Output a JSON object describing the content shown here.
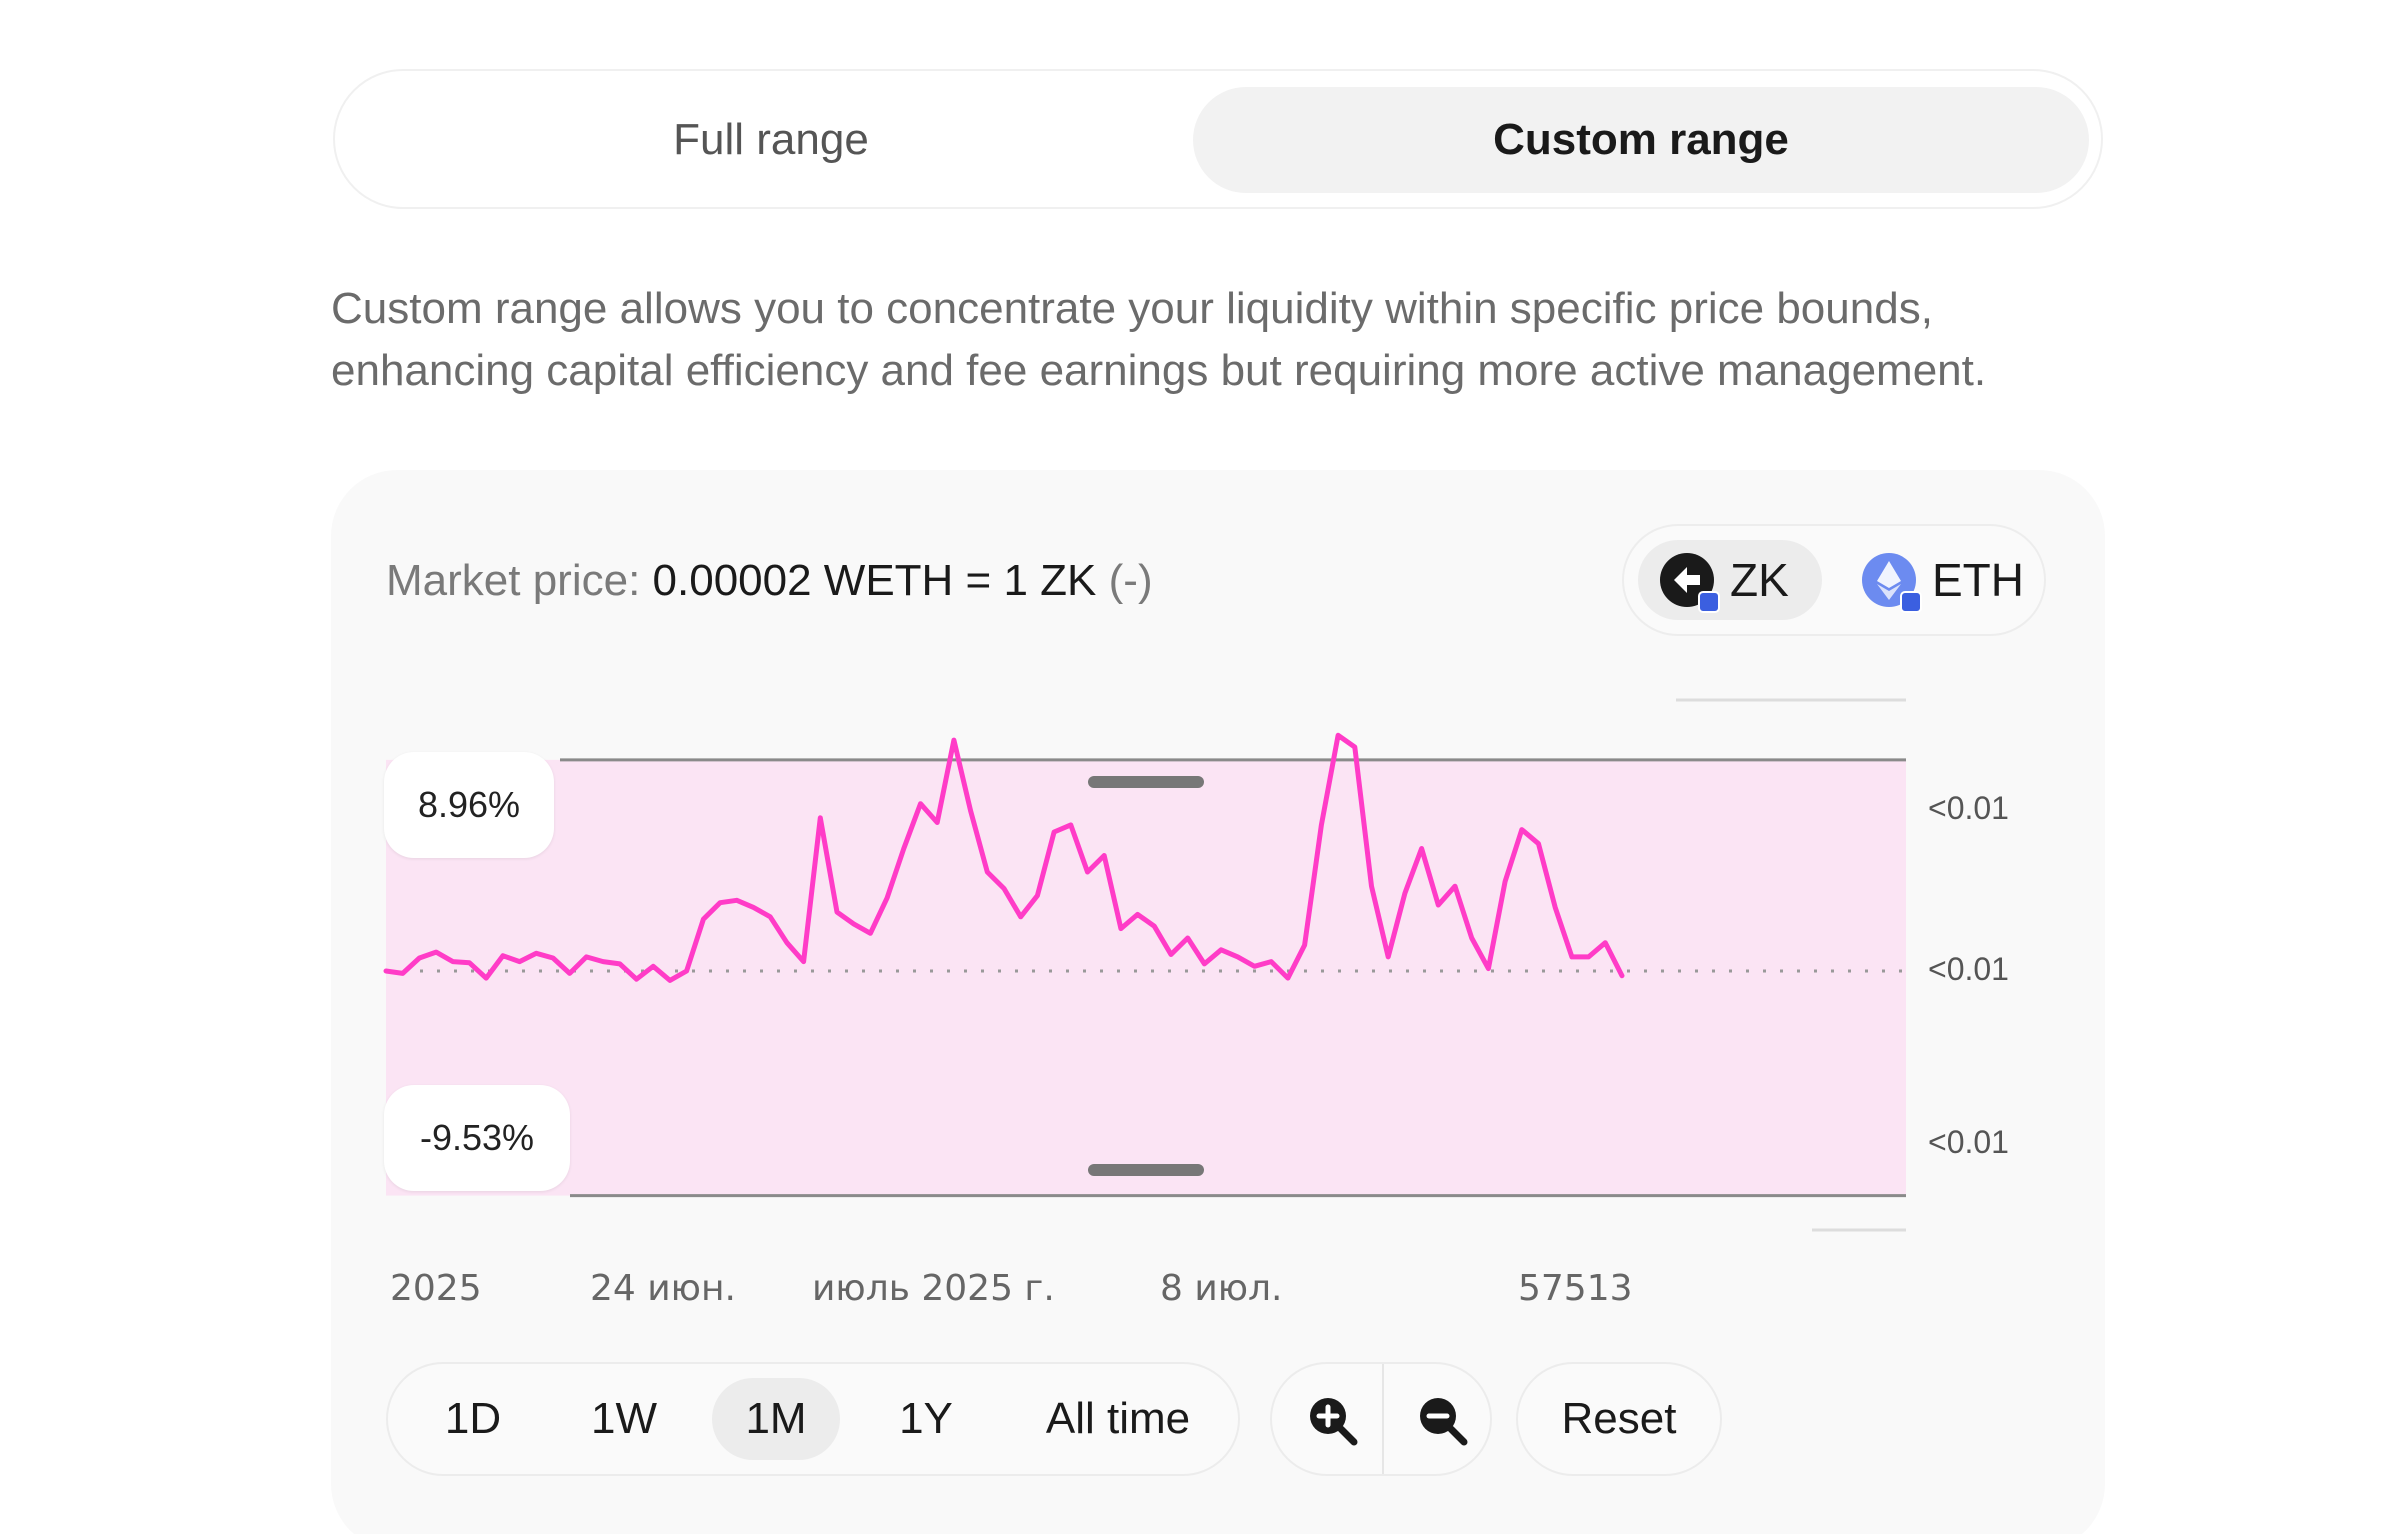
{
  "range_toggle": {
    "full_label": "Full range",
    "custom_label": "Custom range",
    "selected": "custom"
  },
  "description": "Custom range allows you to concentrate your liquidity within specific price bounds, enhancing capital efficiency and fee earnings but requiring more active management.",
  "market_price": {
    "label": "Market price:",
    "value": "0.00002 WETH = 1 ZK",
    "change": "(-)"
  },
  "tokens": [
    {
      "symbol": "ZK",
      "icon": "zk-token-icon",
      "selected": true
    },
    {
      "symbol": "ETH",
      "icon": "eth-token-icon",
      "selected": false
    }
  ],
  "chart_data": {
    "type": "line",
    "x_labels": [
      "2025",
      "24 июн.",
      "июль 2025 г.",
      "8 июл.",
      "57513"
    ],
    "upper_bound_label": "8.96%",
    "lower_bound_label": "-9.53%",
    "y_labels": [
      "<0.01",
      "<0.01",
      "<0.01"
    ],
    "series": [
      {
        "color": "#ff3cc7",
        "values": [
          0.0,
          -0.1,
          0.55,
          0.8,
          0.4,
          0.35,
          -0.3,
          0.65,
          0.4,
          0.75,
          0.55,
          -0.1,
          0.6,
          0.4,
          0.3,
          -0.35,
          0.2,
          -0.4,
          0.0,
          2.2,
          2.9,
          3.0,
          2.7,
          2.3,
          1.2,
          0.4,
          6.5,
          2.5,
          2.0,
          1.6,
          3.1,
          5.2,
          7.1,
          6.3,
          9.8,
          6.8,
          4.2,
          3.5,
          2.3,
          3.2,
          5.9,
          6.2,
          4.2,
          4.9,
          1.8,
          2.4,
          1.9,
          0.7,
          1.4,
          0.3,
          0.9,
          0.6,
          0.2,
          0.4,
          -0.3,
          1.1,
          6.2,
          10.0,
          9.5,
          3.6,
          0.6,
          3.3,
          5.2,
          2.8,
          3.6,
          1.4,
          0.1,
          3.8,
          6.0,
          5.4,
          2.7,
          0.6,
          0.6,
          1.2,
          -0.2
        ]
      }
    ],
    "current_level": 0,
    "band": {
      "upper": 8.96,
      "lower": -9.53
    },
    "ylim": [
      -11.5,
      11.5
    ]
  },
  "periods": [
    {
      "label": "1D",
      "active": false
    },
    {
      "label": "1W",
      "active": false
    },
    {
      "label": "1M",
      "active": true
    },
    {
      "label": "1Y",
      "active": false
    },
    {
      "label": "All time",
      "active": false
    }
  ],
  "zoom_in_icon": "zoom-in-icon",
  "zoom_out_icon": "zoom-out-icon",
  "reset_label": "Reset"
}
